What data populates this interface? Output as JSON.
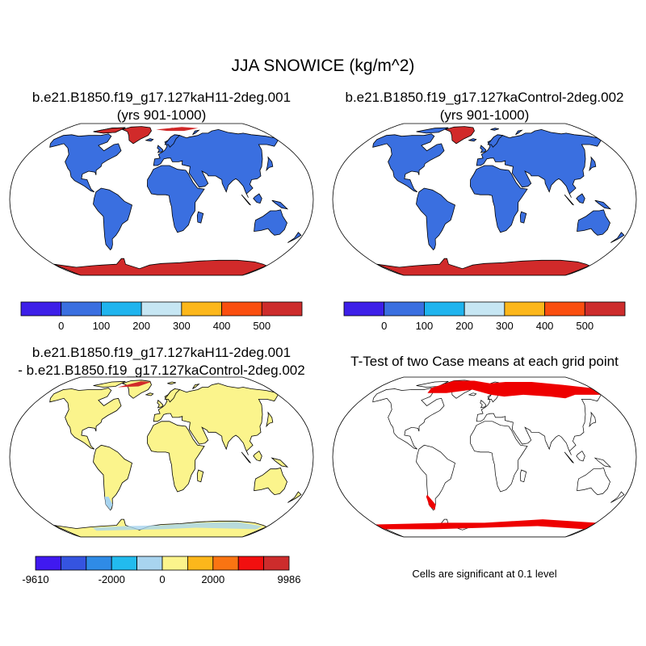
{
  "figure": {
    "title": "JJA SNOWICE (kg/m^2)"
  },
  "panels": [
    {
      "id": "case",
      "title_lines": [
        "b.e21.B1850.f19_g17.127kaH11-2deg.001",
        "(yrs 901-1000)"
      ],
      "type": "filled contour map"
    },
    {
      "id": "control",
      "title_lines": [
        "b.e21.B1850.f19_g17.127kaControl-2deg.002",
        "(yrs 901-1000)"
      ],
      "type": "filled contour map"
    },
    {
      "id": "difference",
      "title_lines": [
        "b.e21.B1850.f19_g17.127kaH11-2deg.001",
        "- b.e21.B1850.f19_g17.127kaControl-2deg.002"
      ],
      "type": "filled contour map"
    },
    {
      "id": "ttest",
      "title_lines": [
        "T-Test of two Case means at each grid point"
      ],
      "type": "significance map",
      "note": "Cells are significant at 0.1 level"
    }
  ],
  "colorbars": {
    "absolute": {
      "colors": [
        "#3d1fe8",
        "#3a6fe0",
        "#1fb4ee",
        "#c6e6f3",
        "#fcb71b",
        "#fa4e0f",
        "#cd2c2c"
      ],
      "labels": [
        "0",
        "100",
        "200",
        "300",
        "400",
        "500"
      ]
    },
    "difference": {
      "colors": [
        "#4019f0",
        "#3554e0",
        "#2f8be6",
        "#22bbee",
        "#a8d4ef",
        "#fbf48c",
        "#fcb71b",
        "#fa7412",
        "#f20f0f",
        "#cd2c2c"
      ],
      "labels": [
        "-9610",
        "-2000",
        "0",
        "2000",
        "9986"
      ]
    }
  },
  "map_colors": {
    "ocean": "#ffffff",
    "land_low": "#3a6fe0",
    "ice_high": "#d12a2a",
    "diff_land": "#fbf48c",
    "diff_neg": "#a8d4ef",
    "significant": "#ee0000"
  }
}
